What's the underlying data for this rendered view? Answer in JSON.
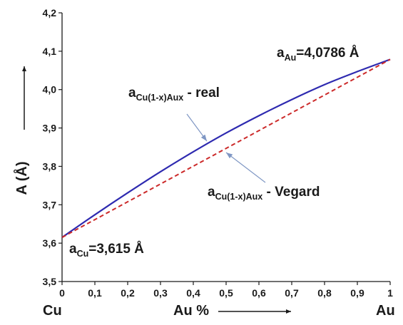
{
  "chart_data": {
    "type": "line",
    "title": "",
    "xlabel": "Au %",
    "ylabel": "A (Å)",
    "x_end_labels": {
      "left": "Cu",
      "right": "Au"
    },
    "xlim": [
      0,
      1
    ],
    "ylim": [
      3.5,
      4.2
    ],
    "grid": false,
    "x_ticks": [
      "0",
      "0,1",
      "0,2",
      "0,3",
      "0,4",
      "0,5",
      "0,6",
      "0,7",
      "0,8",
      "0,9",
      "1"
    ],
    "y_ticks": [
      "3,5",
      "3,6",
      "3,7",
      "3,8",
      "3,9",
      "4,0",
      "4,1",
      "4,2"
    ],
    "series": [
      {
        "name": "a_Cu(1-x)Aux - real",
        "color": "#2e2ab0",
        "style": "solid",
        "x": [
          0,
          0.1,
          0.2,
          0.3,
          0.4,
          0.5,
          0.6,
          0.7,
          0.8,
          0.9,
          1.0
        ],
        "y": [
          3.615,
          3.674,
          3.731,
          3.786,
          3.838,
          3.887,
          3.932,
          3.974,
          4.013,
          4.047,
          4.0786
        ]
      },
      {
        "name": "a_Cu(1-x)Aux - Vegard",
        "color": "#cc2a2a",
        "style": "dashed",
        "x": [
          0,
          1
        ],
        "y": [
          3.615,
          4.0786
        ]
      }
    ],
    "annotations": {
      "real": {
        "base": "a",
        "sub": "Cu(1-x)Aux",
        "suffix": " - real"
      },
      "vegard": {
        "base": "a",
        "sub": "Cu(1-x)Aux",
        "suffix": " - Vegard"
      },
      "a_cu": {
        "base": "a",
        "sub": "Cu",
        "suffix": "=3,615 Å"
      },
      "a_au": {
        "base": "a",
        "sub": "Au",
        "suffix": "=4,0786 Å"
      }
    },
    "arrow_color": "#7f97c4"
  }
}
